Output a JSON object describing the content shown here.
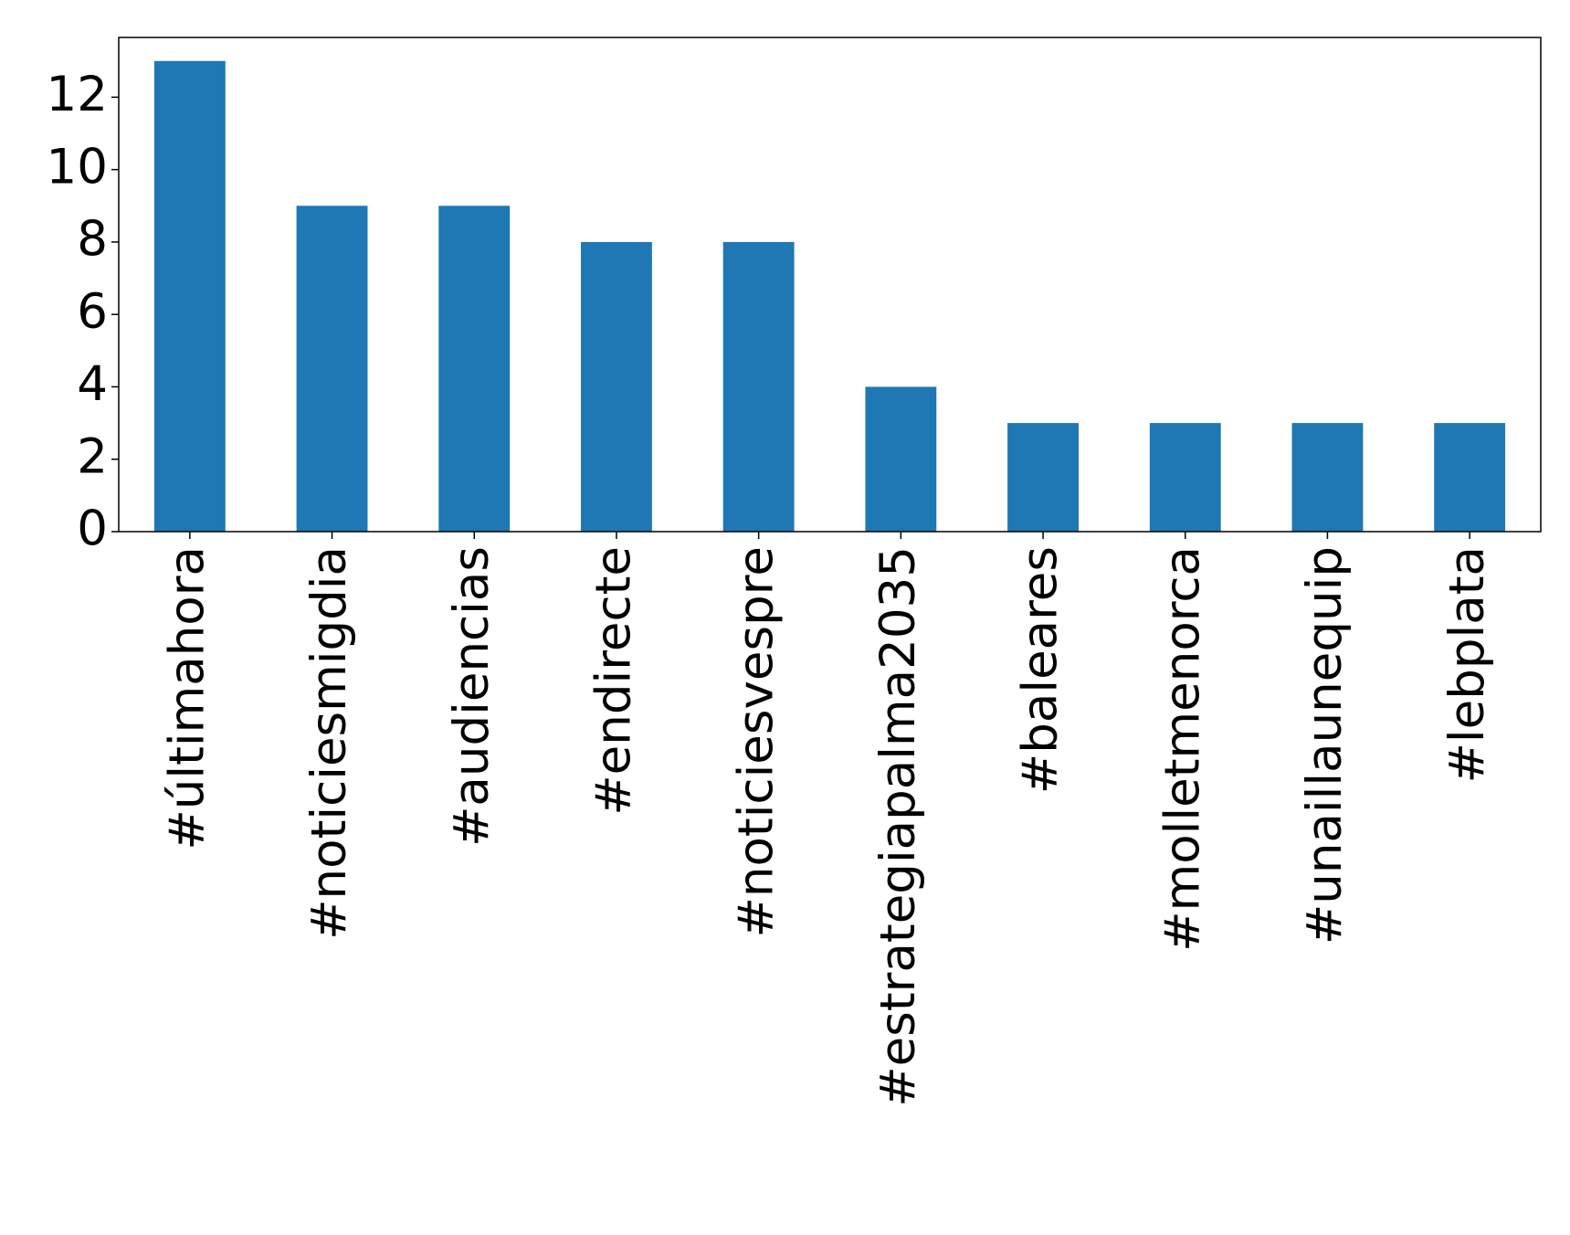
{
  "chart_data": {
    "type": "bar",
    "categories": [
      "#últimahora",
      "#noticiesmigdia",
      "#audiencias",
      "#endirecte",
      "#noticiesvespre",
      "#estrategiapalma2035",
      "#baleares",
      "#molletmenorca",
      "#unaillaunequip",
      "#lebplata"
    ],
    "values": [
      13,
      9,
      9,
      8,
      8,
      4,
      3,
      3,
      3,
      3
    ],
    "color": "#1f77b4",
    "ylim": [
      0,
      13.65
    ],
    "yticks": [
      0,
      2,
      4,
      6,
      8,
      10,
      12
    ],
    "grid": false
  }
}
